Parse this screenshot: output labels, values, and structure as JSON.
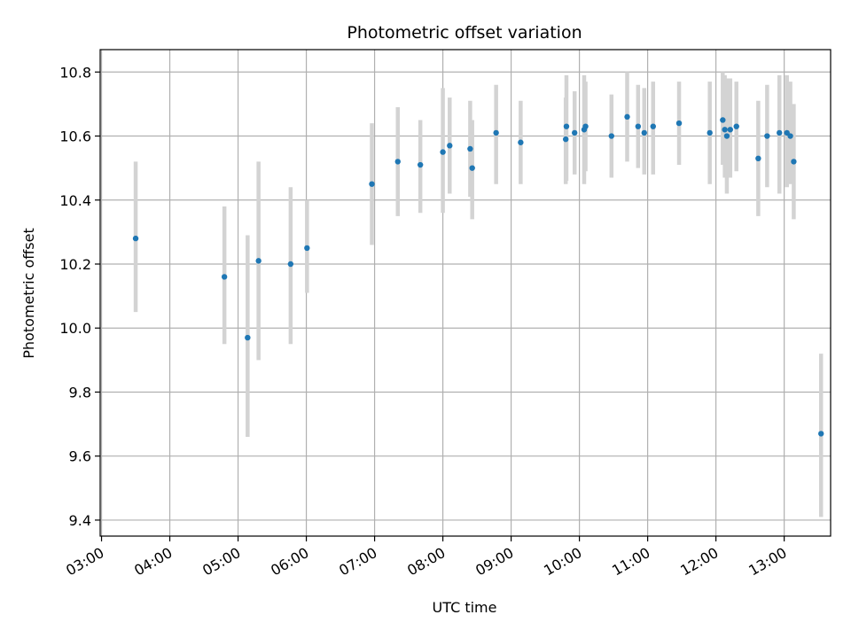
{
  "chart_data": {
    "type": "scatter",
    "title": "Photometric offset variation",
    "xlabel": "UTC time",
    "ylabel": "Photometric offset",
    "x_axis_unit": "hours UTC",
    "xlim": [
      2.98,
      13.68
    ],
    "ylim": [
      9.35,
      10.87
    ],
    "grid": true,
    "legend": "none",
    "x_ticks": [
      {
        "value": 3,
        "label": "03:00"
      },
      {
        "value": 4,
        "label": "04:00"
      },
      {
        "value": 5,
        "label": "05:00"
      },
      {
        "value": 6,
        "label": "06:00"
      },
      {
        "value": 7,
        "label": "07:00"
      },
      {
        "value": 8,
        "label": "08:00"
      },
      {
        "value": 9,
        "label": "09:00"
      },
      {
        "value": 10,
        "label": "10:00"
      },
      {
        "value": 11,
        "label": "11:00"
      },
      {
        "value": 12,
        "label": "12:00"
      },
      {
        "value": 13,
        "label": "13:00"
      }
    ],
    "y_ticks": [
      {
        "value": 9.4,
        "label": "9.4"
      },
      {
        "value": 9.6,
        "label": "9.6"
      },
      {
        "value": 9.8,
        "label": "9.8"
      },
      {
        "value": 10.0,
        "label": "10.0"
      },
      {
        "value": 10.2,
        "label": "10.2"
      },
      {
        "value": 10.4,
        "label": "10.4"
      },
      {
        "value": 10.6,
        "label": "10.6"
      },
      {
        "value": 10.8,
        "label": "10.8"
      }
    ],
    "colors": {
      "point": "#1f77b4",
      "errorbar": "#d3d3d3",
      "grid": "#b0b0b0"
    },
    "series": [
      {
        "points": [
          {
            "x": 3.5,
            "y": 10.28,
            "lo": 10.05,
            "hi": 10.52
          },
          {
            "x": 4.8,
            "y": 10.16,
            "lo": 9.95,
            "hi": 10.38
          },
          {
            "x": 5.14,
            "y": 9.97,
            "lo": 9.66,
            "hi": 10.29
          },
          {
            "x": 5.3,
            "y": 10.21,
            "lo": 9.9,
            "hi": 10.52
          },
          {
            "x": 5.77,
            "y": 10.2,
            "lo": 9.95,
            "hi": 10.44
          },
          {
            "x": 6.01,
            "y": 10.25,
            "lo": 10.11,
            "hi": 10.4
          },
          {
            "x": 6.96,
            "y": 10.45,
            "lo": 10.26,
            "hi": 10.64
          },
          {
            "x": 7.34,
            "y": 10.52,
            "lo": 10.35,
            "hi": 10.69
          },
          {
            "x": 7.67,
            "y": 10.51,
            "lo": 10.36,
            "hi": 10.65
          },
          {
            "x": 8.0,
            "y": 10.55,
            "lo": 10.36,
            "hi": 10.75
          },
          {
            "x": 8.1,
            "y": 10.57,
            "lo": 10.42,
            "hi": 10.72
          },
          {
            "x": 8.4,
            "y": 10.56,
            "lo": 10.41,
            "hi": 10.71
          },
          {
            "x": 8.43,
            "y": 10.5,
            "lo": 10.34,
            "hi": 10.65
          },
          {
            "x": 8.78,
            "y": 10.61,
            "lo": 10.45,
            "hi": 10.76
          },
          {
            "x": 9.14,
            "y": 10.58,
            "lo": 10.45,
            "hi": 10.71
          },
          {
            "x": 9.8,
            "y": 10.59,
            "lo": 10.45,
            "hi": 10.72
          },
          {
            "x": 9.81,
            "y": 10.63,
            "lo": 10.46,
            "hi": 10.79
          },
          {
            "x": 9.93,
            "y": 10.61,
            "lo": 10.48,
            "hi": 10.74
          },
          {
            "x": 10.07,
            "y": 10.62,
            "lo": 10.45,
            "hi": 10.79
          },
          {
            "x": 10.09,
            "y": 10.63,
            "lo": 10.49,
            "hi": 10.77
          },
          {
            "x": 10.47,
            "y": 10.6,
            "lo": 10.47,
            "hi": 10.73
          },
          {
            "x": 10.7,
            "y": 10.66,
            "lo": 10.52,
            "hi": 10.8
          },
          {
            "x": 10.86,
            "y": 10.63,
            "lo": 10.5,
            "hi": 10.76
          },
          {
            "x": 10.95,
            "y": 10.61,
            "lo": 10.48,
            "hi": 10.75
          },
          {
            "x": 11.08,
            "y": 10.63,
            "lo": 10.48,
            "hi": 10.77
          },
          {
            "x": 11.46,
            "y": 10.64,
            "lo": 10.51,
            "hi": 10.77
          },
          {
            "x": 11.91,
            "y": 10.61,
            "lo": 10.45,
            "hi": 10.77
          },
          {
            "x": 12.1,
            "y": 10.65,
            "lo": 10.51,
            "hi": 10.8
          },
          {
            "x": 12.13,
            "y": 10.62,
            "lo": 10.47,
            "hi": 10.79
          },
          {
            "x": 12.16,
            "y": 10.6,
            "lo": 10.42,
            "hi": 10.78
          },
          {
            "x": 12.21,
            "y": 10.62,
            "lo": 10.47,
            "hi": 10.78
          },
          {
            "x": 12.3,
            "y": 10.63,
            "lo": 10.49,
            "hi": 10.77
          },
          {
            "x": 12.62,
            "y": 10.53,
            "lo": 10.35,
            "hi": 10.71
          },
          {
            "x": 12.75,
            "y": 10.6,
            "lo": 10.44,
            "hi": 10.76
          },
          {
            "x": 12.93,
            "y": 10.61,
            "lo": 10.42,
            "hi": 10.79
          },
          {
            "x": 13.04,
            "y": 10.61,
            "lo": 10.44,
            "hi": 10.79
          },
          {
            "x": 13.09,
            "y": 10.6,
            "lo": 10.45,
            "hi": 10.77
          },
          {
            "x": 13.14,
            "y": 10.52,
            "lo": 10.34,
            "hi": 10.7
          },
          {
            "x": 13.54,
            "y": 9.67,
            "lo": 9.41,
            "hi": 9.92
          }
        ]
      }
    ]
  }
}
